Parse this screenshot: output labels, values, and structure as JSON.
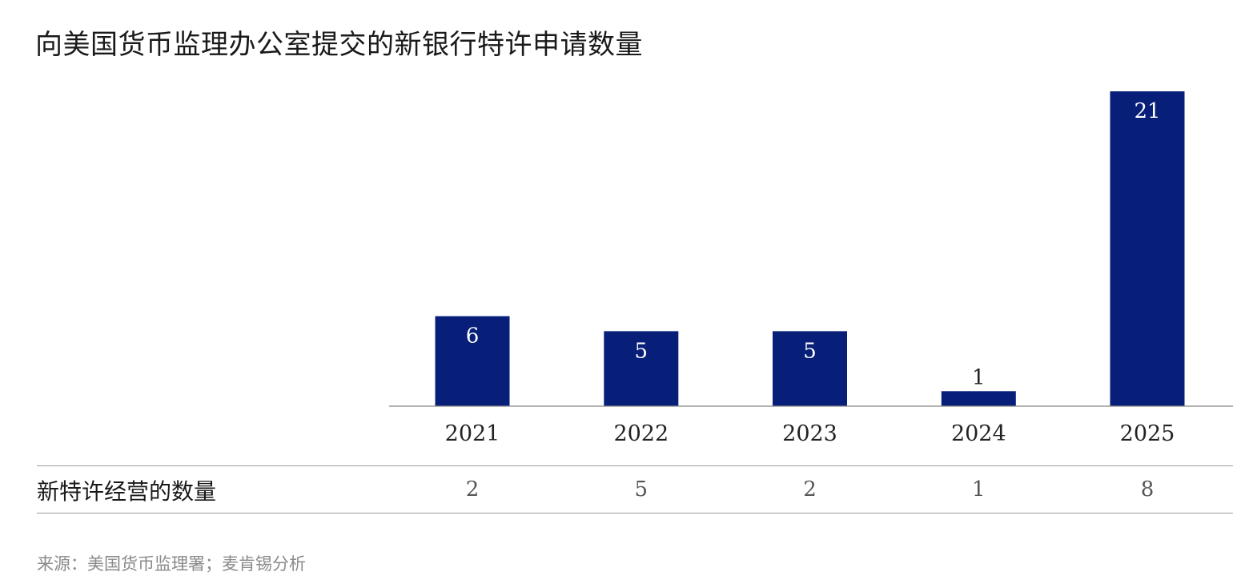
{
  "chart_data": {
    "type": "bar",
    "title": "向美国货币监理办公室提交的新银行特许申请数量",
    "categories": [
      "2021",
      "2022",
      "2023",
      "2024",
      "2025"
    ],
    "values": [
      6,
      5,
      5,
      1,
      21
    ],
    "ylim": [
      0,
      21
    ],
    "bar_color": "#071f78",
    "label_color_inside": "#ffffff",
    "label_color_outside": "#222222",
    "grid": false,
    "table_row": {
      "label": "新特许经营的数量",
      "values": [
        "2",
        "5",
        "2",
        "1",
        "8"
      ]
    },
    "source": "来源：美国货币监理署；麦肯锡分析"
  }
}
